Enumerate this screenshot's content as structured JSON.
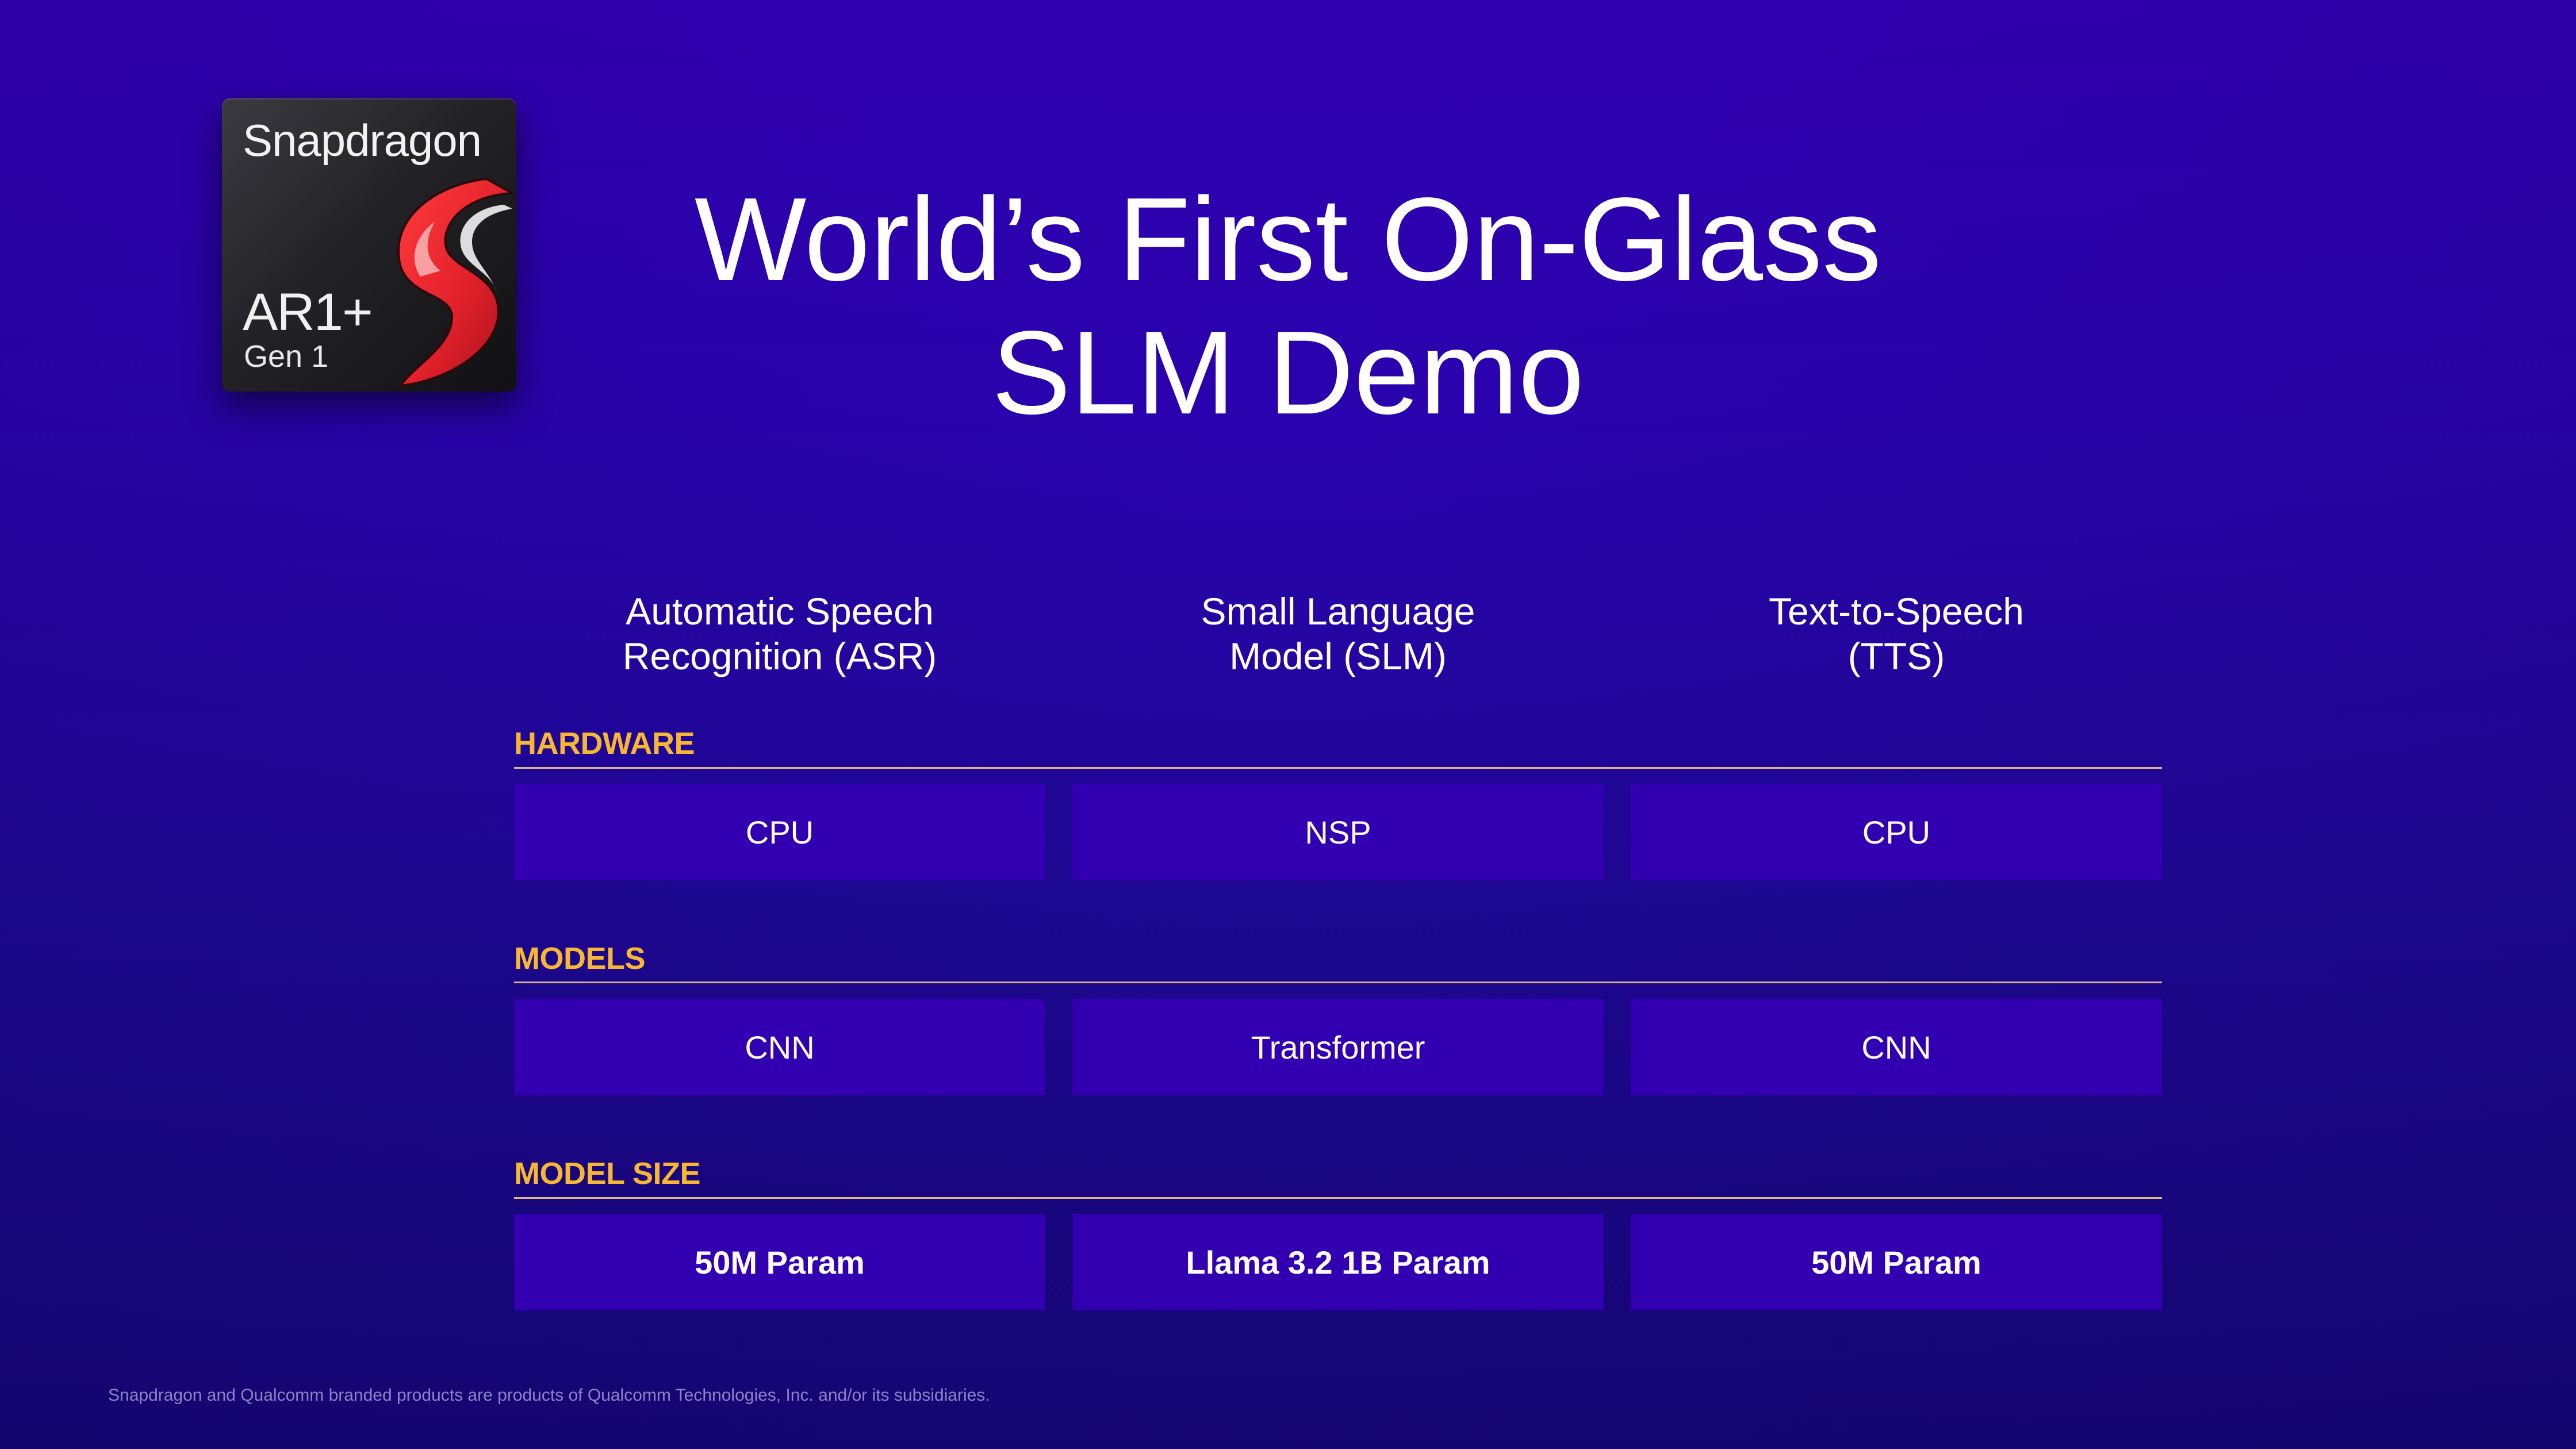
{
  "logo": {
    "brand": "Snapdragon",
    "model": "AR1+",
    "generation": "Gen 1",
    "icon": "snapdragon-dragon-icon",
    "accent_color": "#e3212b"
  },
  "title": {
    "line1": "World’s First On-Glass",
    "line2": "SLM Demo"
  },
  "columns": [
    {
      "line1": "Automatic Speech",
      "line2": "Recognition (ASR)"
    },
    {
      "line1": "Small Language",
      "line2": "Model (SLM)"
    },
    {
      "line1": "Text-to-Speech",
      "line2": "(TTS)"
    }
  ],
  "sections": [
    {
      "label": "HARDWARE",
      "cells": [
        "CPU",
        "NSP",
        "CPU"
      ]
    },
    {
      "label": "MODELS",
      "cells": [
        "CNN",
        "Transformer",
        "CNN"
      ]
    },
    {
      "label": "MODEL SIZE",
      "cells": [
        "50M Param",
        "Llama 3.2 1B Param",
        "50M Param"
      ]
    }
  ],
  "footnote": "Snapdragon and Qualcomm branded products are products of Qualcomm Technologies, Inc. and/or its subsidiaries.",
  "colors": {
    "background_top": "#3300b8",
    "background_bottom": "#170679",
    "section_label": "#f7b733",
    "cell_fill": "#3200b0"
  }
}
